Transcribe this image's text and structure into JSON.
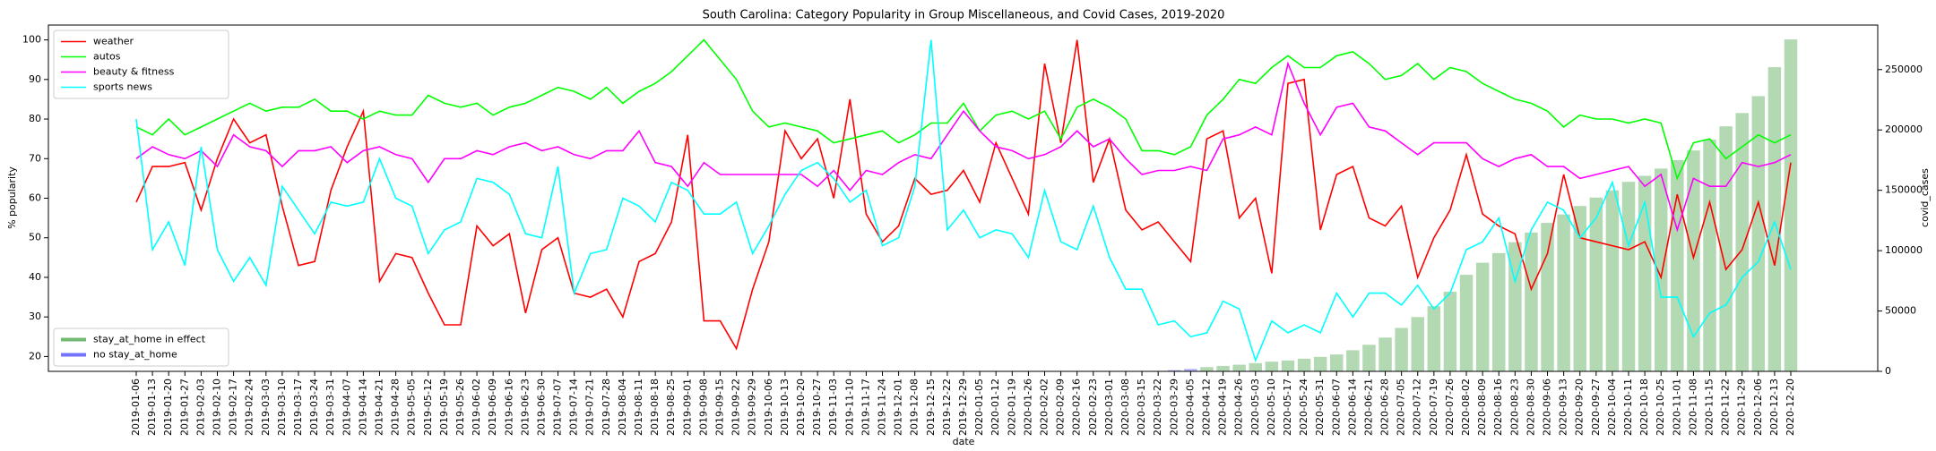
{
  "chart_data": {
    "type": "combo",
    "title": "South Carolina: Category Popularity in Group Miscellaneous, and Covid Cases, 2019-2020",
    "xlabel": "date",
    "ylabel": "% popularity",
    "y2label": "covid_cases",
    "x": [
      "2019-01-06",
      "2019-01-13",
      "2019-01-20",
      "2019-01-27",
      "2019-02-03",
      "2019-02-10",
      "2019-02-17",
      "2019-02-24",
      "2019-03-03",
      "2019-03-10",
      "2019-03-17",
      "2019-03-24",
      "2019-03-31",
      "2019-04-07",
      "2019-04-14",
      "2019-04-21",
      "2019-04-28",
      "2019-05-05",
      "2019-05-12",
      "2019-05-19",
      "2019-05-26",
      "2019-06-02",
      "2019-06-09",
      "2019-06-16",
      "2019-06-23",
      "2019-06-30",
      "2019-07-07",
      "2019-07-14",
      "2019-07-21",
      "2019-07-28",
      "2019-08-04",
      "2019-08-11",
      "2019-08-18",
      "2019-08-25",
      "2019-09-01",
      "2019-09-08",
      "2019-09-15",
      "2019-09-22",
      "2019-09-29",
      "2019-10-06",
      "2019-10-13",
      "2019-10-20",
      "2019-10-27",
      "2019-11-03",
      "2019-11-10",
      "2019-11-17",
      "2019-11-24",
      "2019-12-01",
      "2019-12-08",
      "2019-12-15",
      "2019-12-22",
      "2019-12-29",
      "2020-01-05",
      "2020-01-12",
      "2020-01-19",
      "2020-01-26",
      "2020-02-02",
      "2020-02-09",
      "2020-02-16",
      "2020-02-23",
      "2020-03-01",
      "2020-03-08",
      "2020-03-15",
      "2020-03-22",
      "2020-03-29",
      "2020-04-05",
      "2020-04-12",
      "2020-04-19",
      "2020-04-26",
      "2020-05-03",
      "2020-05-10",
      "2020-05-17",
      "2020-05-24",
      "2020-05-31",
      "2020-06-07",
      "2020-06-14",
      "2020-06-21",
      "2020-06-28",
      "2020-07-05",
      "2020-07-12",
      "2020-07-19",
      "2020-07-26",
      "2020-08-02",
      "2020-08-09",
      "2020-08-16",
      "2020-08-23",
      "2020-08-30",
      "2020-09-06",
      "2020-09-13",
      "2020-09-20",
      "2020-09-27",
      "2020-10-04",
      "2020-10-11",
      "2020-10-18",
      "2020-10-25",
      "2020-11-01",
      "2020-11-08",
      "2020-11-15",
      "2020-11-22",
      "2020-11-29",
      "2020-12-06",
      "2020-12-13",
      "2020-12-20"
    ],
    "ylim": [
      16.25,
      103.75
    ],
    "yticks": [
      20,
      30,
      40,
      50,
      60,
      70,
      80,
      90,
      100
    ],
    "y2lim": [
      0,
      286900
    ],
    "y2ticks": [
      0,
      50000,
      100000,
      150000,
      200000,
      250000
    ],
    "legend": "upper left",
    "legend2": "lower left",
    "series": [
      {
        "name": "weather",
        "color": "#ff0000",
        "type": "line",
        "values": [
          59,
          68,
          68,
          69,
          57,
          70,
          80,
          74,
          76,
          58,
          43,
          44,
          62,
          73,
          82,
          39,
          46,
          45,
          36,
          28,
          28,
          53,
          48,
          51,
          31,
          47,
          50,
          36,
          35,
          37,
          30,
          44,
          46,
          54,
          76,
          29,
          29,
          22,
          37,
          49,
          77,
          70,
          75,
          60,
          85,
          56,
          49,
          53,
          65,
          61,
          62,
          67,
          59,
          74,
          65,
          56,
          94,
          74,
          100,
          64,
          75,
          57,
          52,
          54,
          49,
          44,
          75,
          77,
          55,
          60,
          41,
          89,
          90,
          52,
          66,
          68,
          55,
          53,
          58,
          40,
          50,
          57,
          71,
          56,
          53,
          51,
          37,
          46,
          66,
          50,
          49,
          48,
          47,
          49,
          40,
          61,
          45,
          59,
          42,
          47,
          59,
          43,
          69
        ]
      },
      {
        "name": "autos",
        "color": "#00ff00",
        "type": "line",
        "values": [
          78,
          76,
          80,
          76,
          78,
          80,
          82,
          84,
          82,
          83,
          83,
          85,
          82,
          82,
          80,
          82,
          81,
          81,
          86,
          84,
          83,
          84,
          81,
          83,
          84,
          86,
          88,
          87,
          85,
          88,
          84,
          87,
          89,
          92,
          96,
          100,
          95,
          90,
          82,
          78,
          79,
          78,
          77,
          74,
          75,
          76,
          77,
          74,
          76,
          79,
          79,
          84,
          77,
          81,
          82,
          80,
          82,
          75,
          83,
          85,
          83,
          80,
          72,
          72,
          71,
          73,
          81,
          85,
          90,
          89,
          93,
          96,
          93,
          93,
          96,
          97,
          94,
          90,
          91,
          94,
          90,
          93,
          92,
          89,
          87,
          85,
          84,
          82,
          78,
          81,
          80,
          80,
          79,
          80,
          79,
          65,
          74,
          75,
          70,
          73,
          76,
          74,
          76
        ]
      },
      {
        "name": "beauty & fitness",
        "color": "#ff00ff",
        "type": "line",
        "values": [
          70,
          73,
          71,
          70,
          72,
          68,
          76,
          73,
          72,
          68,
          72,
          72,
          73,
          69,
          72,
          73,
          71,
          70,
          64,
          70,
          70,
          72,
          71,
          73,
          74,
          72,
          73,
          71,
          70,
          72,
          72,
          77,
          69,
          68,
          63,
          69,
          66,
          66,
          66,
          66,
          66,
          66,
          63,
          67,
          62,
          67,
          66,
          69,
          71,
          70,
          76,
          82,
          77,
          73,
          72,
          70,
          71,
          73,
          77,
          73,
          75,
          70,
          66,
          67,
          67,
          68,
          67,
          75,
          76,
          78,
          76,
          94,
          84,
          76,
          83,
          84,
          78,
          77,
          74,
          71,
          74,
          74,
          74,
          70,
          68,
          70,
          71,
          68,
          68,
          65,
          66,
          67,
          68,
          63,
          66,
          52,
          65,
          63,
          63,
          69,
          68,
          69,
          71
        ]
      },
      {
        "name": "sports news",
        "color": "#00ffff",
        "type": "line",
        "values": [
          80,
          47,
          54,
          43,
          73,
          47,
          39,
          45,
          38,
          63,
          57,
          51,
          59,
          58,
          59,
          70,
          60,
          58,
          46,
          52,
          54,
          65,
          64,
          61,
          51,
          50,
          68,
          36,
          46,
          47,
          60,
          58,
          54,
          64,
          62,
          56,
          56,
          59,
          46,
          53,
          61,
          67,
          69,
          65,
          59,
          62,
          48,
          50,
          63,
          100,
          52,
          57,
          50,
          52,
          51,
          45,
          62,
          49,
          47,
          58,
          45,
          37,
          37,
          28,
          29,
          25,
          26,
          34,
          32,
          19,
          29,
          26,
          28,
          26,
          36,
          30,
          36,
          36,
          33,
          38,
          32,
          36,
          47,
          49,
          55,
          39,
          52,
          59,
          57,
          50,
          55,
          64,
          48,
          59,
          35,
          35,
          25,
          31,
          33,
          40,
          44,
          54,
          42
        ]
      },
      {
        "name": "stay_at_home in effect",
        "color": "#008000",
        "type": "bar",
        "axis": "y2",
        "values": [
          null,
          null,
          null,
          null,
          null,
          null,
          null,
          null,
          null,
          null,
          null,
          null,
          null,
          null,
          null,
          null,
          null,
          null,
          null,
          null,
          null,
          null,
          null,
          null,
          null,
          null,
          null,
          null,
          null,
          null,
          null,
          null,
          null,
          null,
          null,
          null,
          null,
          null,
          null,
          null,
          null,
          null,
          null,
          null,
          null,
          null,
          null,
          null,
          null,
          null,
          null,
          null,
          null,
          null,
          null,
          null,
          null,
          null,
          null,
          null,
          null,
          null,
          null,
          null,
          null,
          null,
          3500,
          4500,
          5500,
          6800,
          8000,
          9000,
          10500,
          12000,
          14000,
          17500,
          22000,
          28000,
          36000,
          45000,
          54000,
          66000,
          80000,
          90000,
          98000,
          107000,
          115000,
          123000,
          130000,
          137000,
          144000,
          150000,
          157000,
          162000,
          168000,
          175000,
          183000,
          192000,
          203000,
          214000,
          228000,
          252000,
          275000
        ]
      },
      {
        "name": "no stay_at_home",
        "color": "#0000ff",
        "type": "bar",
        "axis": "y2",
        "values": [
          null,
          null,
          null,
          null,
          null,
          null,
          null,
          null,
          null,
          null,
          null,
          null,
          null,
          null,
          null,
          null,
          null,
          null,
          null,
          null,
          null,
          null,
          null,
          null,
          null,
          null,
          null,
          null,
          null,
          null,
          null,
          null,
          null,
          null,
          null,
          null,
          null,
          null,
          null,
          null,
          null,
          null,
          null,
          null,
          null,
          null,
          null,
          null,
          null,
          null,
          null,
          null,
          null,
          null,
          null,
          null,
          null,
          null,
          null,
          null,
          null,
          null,
          null,
          null,
          1000,
          2000,
          null,
          null,
          null,
          null,
          null,
          null,
          null,
          null,
          null,
          null,
          null,
          null,
          null,
          null,
          null,
          null,
          null,
          null,
          null,
          null,
          null,
          null,
          null,
          null,
          null,
          null,
          null,
          null,
          null,
          null,
          null,
          null,
          null,
          null,
          null,
          null,
          null
        ]
      }
    ]
  }
}
